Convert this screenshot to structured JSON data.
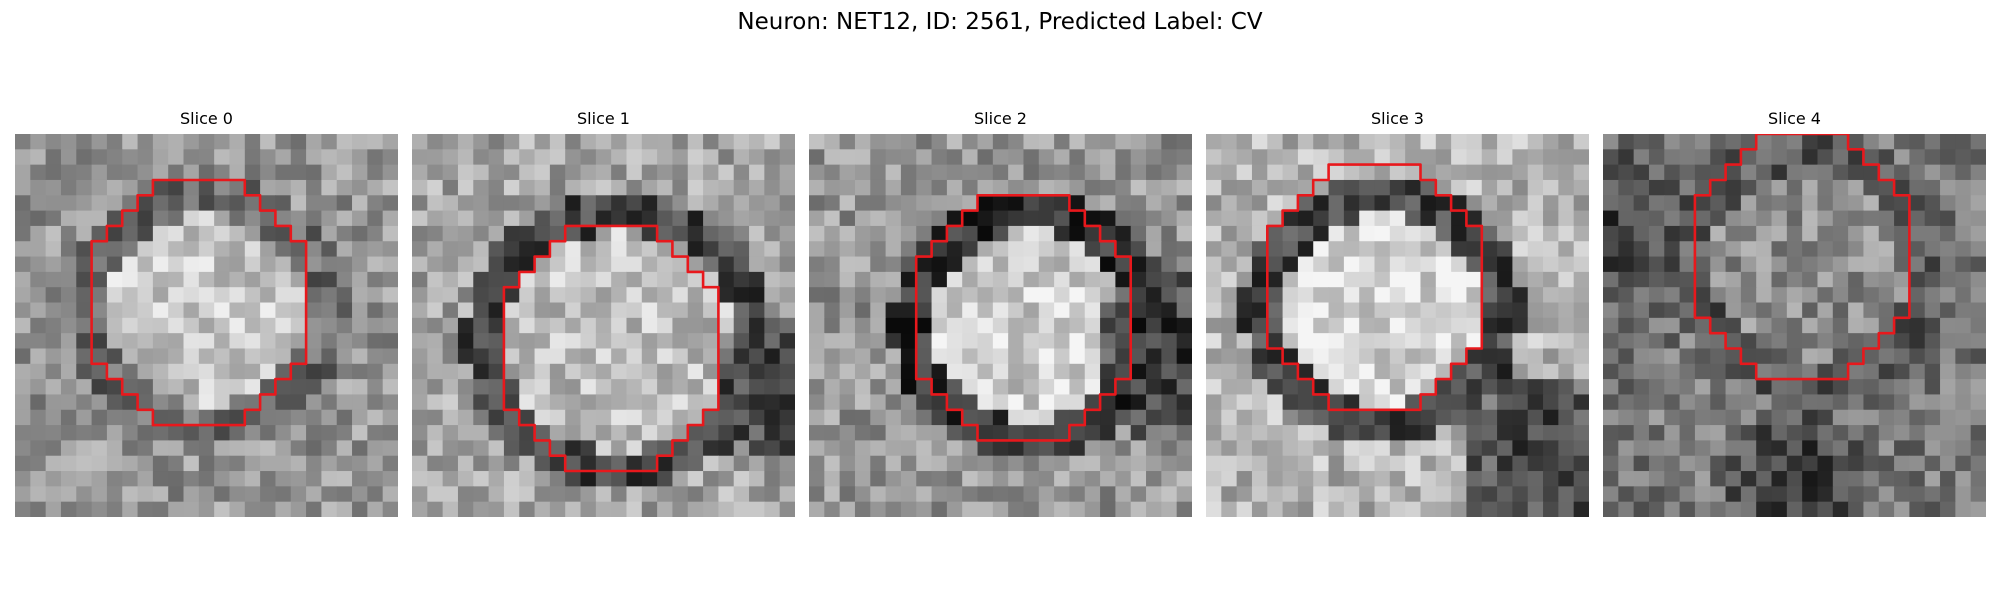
{
  "figure": {
    "title": "Neuron: NET12, ID: 2561, Predicted Label: CV"
  },
  "slices": [
    {
      "title": "Slice 0",
      "contour": [
        [
          9,
          3
        ],
        [
          15,
          3
        ],
        [
          15,
          4
        ],
        [
          16,
          4
        ],
        [
          16,
          5
        ],
        [
          17,
          5
        ],
        [
          17,
          6
        ],
        [
          18,
          6
        ],
        [
          18,
          7
        ],
        [
          19,
          7
        ],
        [
          19,
          15
        ],
        [
          18,
          15
        ],
        [
          18,
          16
        ],
        [
          17,
          16
        ],
        [
          17,
          17
        ],
        [
          16,
          17
        ],
        [
          16,
          18
        ],
        [
          15,
          18
        ],
        [
          15,
          19
        ],
        [
          9,
          19
        ],
        [
          9,
          18
        ],
        [
          8,
          18
        ],
        [
          8,
          17
        ],
        [
          7,
          17
        ],
        [
          7,
          16
        ],
        [
          6,
          16
        ],
        [
          6,
          15
        ],
        [
          5,
          15
        ],
        [
          5,
          7
        ],
        [
          6,
          7
        ],
        [
          6,
          6
        ],
        [
          7,
          6
        ],
        [
          7,
          5
        ],
        [
          8,
          5
        ],
        [
          8,
          4
        ],
        [
          9,
          4
        ]
      ]
    },
    {
      "title": "Slice 1",
      "contour": [
        [
          10,
          6
        ],
        [
          16,
          6
        ],
        [
          16,
          7
        ],
        [
          17,
          7
        ],
        [
          17,
          8
        ],
        [
          18,
          8
        ],
        [
          18,
          9
        ],
        [
          19,
          9
        ],
        [
          19,
          10
        ],
        [
          20,
          10
        ],
        [
          20,
          18
        ],
        [
          19,
          18
        ],
        [
          19,
          19
        ],
        [
          18,
          19
        ],
        [
          18,
          20
        ],
        [
          17,
          20
        ],
        [
          17,
          21
        ],
        [
          16,
          21
        ],
        [
          16,
          22
        ],
        [
          10,
          22
        ],
        [
          10,
          21
        ],
        [
          9,
          21
        ],
        [
          9,
          20
        ],
        [
          8,
          20
        ],
        [
          8,
          19
        ],
        [
          7,
          19
        ],
        [
          7,
          18
        ],
        [
          6,
          18
        ],
        [
          6,
          10
        ],
        [
          7,
          10
        ],
        [
          7,
          9
        ],
        [
          8,
          9
        ],
        [
          8,
          8
        ],
        [
          9,
          8
        ],
        [
          9,
          7
        ],
        [
          10,
          7
        ]
      ]
    },
    {
      "title": "Slice 2",
      "contour": [
        [
          11,
          4
        ],
        [
          17,
          4
        ],
        [
          17,
          5
        ],
        [
          18,
          5
        ],
        [
          18,
          6
        ],
        [
          19,
          6
        ],
        [
          19,
          7
        ],
        [
          20,
          7
        ],
        [
          20,
          8
        ],
        [
          21,
          8
        ],
        [
          21,
          16
        ],
        [
          20,
          16
        ],
        [
          20,
          17
        ],
        [
          19,
          17
        ],
        [
          19,
          18
        ],
        [
          18,
          18
        ],
        [
          18,
          19
        ],
        [
          17,
          19
        ],
        [
          17,
          20
        ],
        [
          11,
          20
        ],
        [
          11,
          19
        ],
        [
          10,
          19
        ],
        [
          10,
          18
        ],
        [
          9,
          18
        ],
        [
          9,
          17
        ],
        [
          8,
          17
        ],
        [
          8,
          16
        ],
        [
          7,
          16
        ],
        [
          7,
          8
        ],
        [
          8,
          8
        ],
        [
          8,
          7
        ],
        [
          9,
          7
        ],
        [
          9,
          6
        ],
        [
          10,
          6
        ],
        [
          10,
          5
        ],
        [
          11,
          5
        ]
      ]
    },
    {
      "title": "Slice 3",
      "contour": [
        [
          8,
          2
        ],
        [
          14,
          2
        ],
        [
          14,
          3
        ],
        [
          15,
          3
        ],
        [
          15,
          4
        ],
        [
          16,
          4
        ],
        [
          16,
          5
        ],
        [
          17,
          5
        ],
        [
          17,
          6
        ],
        [
          18,
          6
        ],
        [
          18,
          14
        ],
        [
          17,
          14
        ],
        [
          17,
          15
        ],
        [
          16,
          15
        ],
        [
          16,
          16
        ],
        [
          15,
          16
        ],
        [
          15,
          17
        ],
        [
          14,
          17
        ],
        [
          14,
          18
        ],
        [
          8,
          18
        ],
        [
          8,
          17
        ],
        [
          7,
          17
        ],
        [
          7,
          16
        ],
        [
          6,
          16
        ],
        [
          6,
          15
        ],
        [
          5,
          15
        ],
        [
          5,
          14
        ],
        [
          4,
          14
        ],
        [
          4,
          6
        ],
        [
          5,
          6
        ],
        [
          5,
          5
        ],
        [
          6,
          5
        ],
        [
          6,
          4
        ],
        [
          7,
          4
        ],
        [
          7,
          3
        ],
        [
          8,
          3
        ]
      ]
    },
    {
      "title": "Slice 4",
      "contour": [
        [
          10,
          0
        ],
        [
          16,
          0
        ],
        [
          16,
          1
        ],
        [
          17,
          1
        ],
        [
          17,
          2
        ],
        [
          18,
          2
        ],
        [
          18,
          3
        ],
        [
          19,
          3
        ],
        [
          19,
          4
        ],
        [
          20,
          4
        ],
        [
          20,
          12
        ],
        [
          19,
          12
        ],
        [
          19,
          13
        ],
        [
          18,
          13
        ],
        [
          18,
          14
        ],
        [
          17,
          14
        ],
        [
          17,
          15
        ],
        [
          16,
          15
        ],
        [
          16,
          16
        ],
        [
          10,
          16
        ],
        [
          10,
          15
        ],
        [
          9,
          15
        ],
        [
          9,
          14
        ],
        [
          8,
          14
        ],
        [
          8,
          13
        ],
        [
          7,
          13
        ],
        [
          7,
          12
        ],
        [
          6,
          12
        ],
        [
          6,
          4
        ],
        [
          7,
          4
        ],
        [
          7,
          3
        ],
        [
          8,
          3
        ],
        [
          8,
          2
        ],
        [
          9,
          2
        ],
        [
          9,
          1
        ],
        [
          10,
          1
        ]
      ]
    }
  ]
}
